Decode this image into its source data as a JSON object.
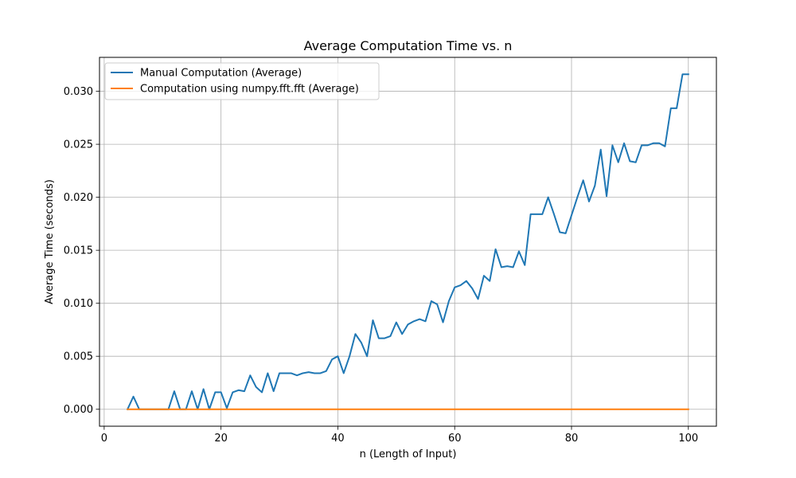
{
  "chart_data": {
    "type": "line",
    "title": "Average Computation Time vs. n",
    "xlabel": "n (Length of Input)",
    "ylabel": "Average Time (seconds)",
    "xlim": [
      -0.8,
      104.8
    ],
    "ylim": [
      -0.0016,
      0.0332
    ],
    "xticks": [
      0,
      20,
      40,
      60,
      80,
      100
    ],
    "xtick_labels": [
      "0",
      "20",
      "40",
      "60",
      "80",
      "100"
    ],
    "yticks": [
      0.0,
      0.005,
      0.01,
      0.015,
      0.02,
      0.025,
      0.03
    ],
    "ytick_labels": [
      "0.000",
      "0.005",
      "0.010",
      "0.015",
      "0.020",
      "0.025",
      "0.030"
    ],
    "grid": true,
    "legend_position": "upper-left",
    "x": [
      4,
      5,
      6,
      7,
      8,
      9,
      10,
      11,
      12,
      13,
      14,
      15,
      16,
      17,
      18,
      19,
      20,
      21,
      22,
      23,
      24,
      25,
      26,
      27,
      28,
      29,
      30,
      31,
      32,
      33,
      34,
      35,
      36,
      37,
      38,
      39,
      40,
      41,
      42,
      43,
      44,
      45,
      46,
      47,
      48,
      49,
      50,
      51,
      52,
      53,
      54,
      55,
      56,
      57,
      58,
      59,
      60,
      61,
      62,
      63,
      64,
      65,
      66,
      67,
      68,
      69,
      70,
      71,
      72,
      73,
      74,
      75,
      76,
      77,
      78,
      79,
      80,
      81,
      82,
      83,
      84,
      85,
      86,
      87,
      88,
      89,
      90,
      91,
      92,
      93,
      94,
      95,
      96,
      97,
      98,
      99,
      100
    ],
    "series": [
      {
        "name": "Manual Computation (Average)",
        "color": "#1f77b4",
        "values": [
          0.0,
          0.0012,
          0.0,
          0.0,
          0.0,
          0.0,
          0.0,
          0.0,
          0.0017,
          0.0,
          0.0,
          0.0017,
          0.0,
          0.0019,
          0.0,
          0.0016,
          0.0016,
          0.0001,
          0.0016,
          0.0018,
          0.0017,
          0.0032,
          0.0021,
          0.0016,
          0.0034,
          0.0017,
          0.0034,
          0.0034,
          0.0034,
          0.0032,
          0.0034,
          0.0035,
          0.0034,
          0.0034,
          0.0036,
          0.0047,
          0.005,
          0.0034,
          0.005,
          0.0071,
          0.0063,
          0.005,
          0.0084,
          0.0067,
          0.0067,
          0.0069,
          0.0082,
          0.0071,
          0.008,
          0.0083,
          0.0085,
          0.0083,
          0.0102,
          0.0099,
          0.0082,
          0.0102,
          0.0115,
          0.0117,
          0.0121,
          0.0114,
          0.0104,
          0.0126,
          0.0121,
          0.0151,
          0.0134,
          0.0135,
          0.0134,
          0.0149,
          0.0136,
          0.0184,
          0.0184,
          0.0184,
          0.02,
          0.0184,
          0.0167,
          0.0166,
          0.0183,
          0.02,
          0.0216,
          0.0196,
          0.0211,
          0.0245,
          0.0201,
          0.0249,
          0.0233,
          0.0251,
          0.0234,
          0.0233,
          0.0249,
          0.0249,
          0.0251,
          0.0251,
          0.0248,
          0.0284,
          0.0284,
          0.0316,
          0.0316
        ]
      },
      {
        "name": "Computation using numpy.fft.fft (Average)",
        "color": "#ff7f0e",
        "values": [
          0.0,
          0.0,
          0.0,
          0.0,
          0.0,
          0.0,
          0.0,
          0.0,
          0.0,
          0.0,
          0.0,
          0.0,
          0.0,
          0.0,
          0.0,
          0.0,
          0.0,
          0.0,
          0.0,
          0.0,
          0.0,
          0.0,
          0.0,
          0.0,
          0.0,
          0.0,
          0.0,
          0.0,
          0.0,
          0.0,
          0.0,
          0.0,
          0.0,
          0.0,
          0.0,
          0.0,
          0.0,
          0.0,
          0.0,
          0.0,
          0.0,
          0.0,
          0.0,
          0.0,
          0.0,
          0.0,
          0.0,
          0.0,
          0.0,
          0.0,
          0.0,
          0.0,
          0.0,
          0.0,
          0.0,
          0.0,
          0.0,
          0.0,
          0.0,
          0.0,
          0.0,
          0.0,
          0.0,
          0.0,
          0.0,
          0.0,
          0.0,
          0.0,
          0.0,
          0.0,
          0.0,
          0.0,
          0.0,
          0.0,
          0.0,
          0.0,
          0.0,
          0.0,
          0.0,
          0.0,
          0.0,
          0.0,
          0.0,
          0.0,
          0.0,
          0.0,
          0.0,
          0.0,
          0.0,
          0.0,
          0.0,
          0.0,
          0.0,
          0.0,
          0.0,
          0.0,
          0.0
        ]
      }
    ],
    "colors": {
      "grid": "#b0b0b0",
      "axes": "#000000",
      "background": "#ffffff",
      "legend_border": "#cccccc"
    }
  }
}
